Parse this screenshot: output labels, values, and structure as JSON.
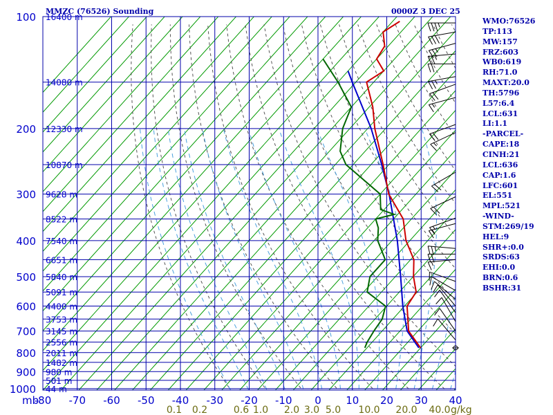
{
  "title_left": "MMZC (76526) Sounding",
  "title_right": "0000Z  3 DEC 25",
  "chart_data": {
    "type": "skew-t",
    "pressure_levels": [
      100,
      200,
      300,
      400,
      500,
      600,
      700,
      800,
      900,
      1000
    ],
    "temperature_ticks": [
      -80,
      -70,
      -60,
      -50,
      -40,
      -30,
      -20,
      -10,
      0,
      10,
      20,
      30,
      40
    ],
    "temperature_tick_labels": [
      "-80",
      "-70",
      "-60",
      "-50",
      "-40",
      "-30",
      "-20",
      "-10",
      "0",
      "10",
      "20",
      "30",
      "40"
    ],
    "pressure_unit": "mb",
    "mixing_ratio_unit": "g/kg",
    "mixing_ratio_labels": [
      "0.1",
      "0.2",
      "0.6",
      "1.0",
      "2.0",
      "3.0",
      "5.0",
      "10.0",
      "20.0",
      "40.0"
    ],
    "height_labels": [
      {
        "p": 100,
        "label": "16400 m"
      },
      {
        "p": 150,
        "label": "14080 m"
      },
      {
        "p": 200,
        "label": "12330 m"
      },
      {
        "p": 250,
        "label": "10870 m"
      },
      {
        "p": 300,
        "label": "9628 m"
      },
      {
        "p": 350,
        "label": "8522 m"
      },
      {
        "p": 400,
        "label": "7540 m"
      },
      {
        "p": 450,
        "label": "6651 m"
      },
      {
        "p": 500,
        "label": "5840 m"
      },
      {
        "p": 550,
        "label": "5091 m"
      },
      {
        "p": 600,
        "label": "4400 m"
      },
      {
        "p": 650,
        "label": "3753 m"
      },
      {
        "p": 700,
        "label": "3145 m"
      },
      {
        "p": 750,
        "label": "2556 m"
      },
      {
        "p": 800,
        "label": "2011 m"
      },
      {
        "p": 850,
        "label": "1482 m"
      },
      {
        "p": 900,
        "label": "980 m"
      },
      {
        "p": 950,
        "label": "501 m"
      },
      {
        "p": 1000,
        "label": "44 m"
      }
    ],
    "temperature_profile": [
      {
        "p": 777,
        "t": 20.0
      },
      {
        "p": 700,
        "t": 12.4
      },
      {
        "p": 600,
        "t": 5.7
      },
      {
        "p": 550,
        "t": 4.7
      },
      {
        "p": 500,
        "t": 0.1
      },
      {
        "p": 450,
        "t": -4.1
      },
      {
        "p": 400,
        "t": -11.1
      },
      {
        "p": 350,
        "t": -17.3
      },
      {
        "p": 300,
        "t": -27.6
      },
      {
        "p": 250,
        "t": -36.6
      },
      {
        "p": 200,
        "t": -48.0
      },
      {
        "p": 175,
        "t": -54.0
      },
      {
        "p": 150,
        "t": -62.0
      },
      {
        "p": 140,
        "t": -60.0
      },
      {
        "p": 130,
        "t": -65.0
      },
      {
        "p": 120,
        "t": -66.0
      },
      {
        "p": 110,
        "t": -70.0
      },
      {
        "p": 103,
        "t": -68.0
      }
    ],
    "dewpoint_profile": [
      {
        "p": 777,
        "t": 4.4
      },
      {
        "p": 750,
        "t": 3.6
      },
      {
        "p": 700,
        "t": 2.7
      },
      {
        "p": 650,
        "t": 2.0
      },
      {
        "p": 600,
        "t": -0.3
      },
      {
        "p": 550,
        "t": -9.0
      },
      {
        "p": 500,
        "t": -12.1
      },
      {
        "p": 450,
        "t": -12.1
      },
      {
        "p": 400,
        "t": -19.0
      },
      {
        "p": 370,
        "t": -22.0
      },
      {
        "p": 350,
        "t": -25.0
      },
      {
        "p": 340,
        "t": -21.0
      },
      {
        "p": 330,
        "t": -26.0
      },
      {
        "p": 300,
        "t": -30.0
      },
      {
        "p": 250,
        "t": -47.0
      },
      {
        "p": 230,
        "t": -52.0
      },
      {
        "p": 200,
        "t": -57.0
      },
      {
        "p": 175,
        "t": -60.0
      },
      {
        "p": 150,
        "t": -70.0
      },
      {
        "p": 130,
        "t": -80.0
      }
    ],
    "parcel_profile": [
      {
        "p": 777,
        "t": 19.5
      },
      {
        "p": 700,
        "t": 12.0
      },
      {
        "p": 600,
        "t": 4.5
      },
      {
        "p": 500,
        "t": -3.5
      },
      {
        "p": 400,
        "t": -13.5
      },
      {
        "p": 300,
        "t": -27.5
      },
      {
        "p": 250,
        "t": -37.0
      },
      {
        "p": 200,
        "t": -49.0
      },
      {
        "p": 150,
        "t": -66.0
      },
      {
        "p": 140,
        "t": -70.0
      }
    ],
    "wind_barbs": [
      {
        "p": 104,
        "dir": 270,
        "spd": 35
      },
      {
        "p": 110,
        "dir": 260,
        "spd": 30
      },
      {
        "p": 118,
        "dir": 255,
        "spd": 25
      },
      {
        "p": 126,
        "dir": 265,
        "spd": 25
      },
      {
        "p": 134,
        "dir": 270,
        "spd": 20
      },
      {
        "p": 145,
        "dir": 260,
        "spd": 25
      },
      {
        "p": 152,
        "dir": 250,
        "spd": 20
      },
      {
        "p": 165,
        "dir": 255,
        "spd": 15
      },
      {
        "p": 195,
        "dir": 250,
        "spd": 20
      },
      {
        "p": 205,
        "dir": 245,
        "spd": 15
      },
      {
        "p": 262,
        "dir": 240,
        "spd": 20
      },
      {
        "p": 305,
        "dir": 245,
        "spd": 20
      },
      {
        "p": 348,
        "dir": 250,
        "spd": 15
      },
      {
        "p": 360,
        "dir": 255,
        "spd": 15
      },
      {
        "p": 420,
        "dir": 275,
        "spd": 25
      },
      {
        "p": 435,
        "dir": 270,
        "spd": 20
      },
      {
        "p": 450,
        "dir": 265,
        "spd": 15
      },
      {
        "p": 515,
        "dir": 290,
        "spd": 10
      },
      {
        "p": 545,
        "dir": 300,
        "spd": 10
      },
      {
        "p": 575,
        "dir": 310,
        "spd": 10
      },
      {
        "p": 600,
        "dir": 320,
        "spd": 10
      },
      {
        "p": 625,
        "dir": 325,
        "spd": 10
      },
      {
        "p": 660,
        "dir": 330,
        "spd": 10
      },
      {
        "p": 700,
        "dir": 325,
        "spd": 10
      },
      {
        "p": 740,
        "dir": 320,
        "spd": 10
      }
    ],
    "surface_marker_p": 777
  },
  "indices": [
    "WMO:76526",
    "TP:113",
    "MW:157",
    "FRZ:603",
    "WB0:619",
    "RH:71.0",
    "MAXT:20.0",
    "TH:5796",
    "L57:6.4",
    "LCL:631",
    "LI:1.1",
    "-PARCEL-",
    "CAPE:18",
    "CINH:21",
    "LCL:636",
    "CAP:1.6",
    "LFC:601",
    "EL:551",
    "MPL:521",
    "-WIND-",
    "STM:269/19",
    "HEL:9",
    "SHR+:0.0",
    "SRDS:63",
    "EHI:0.0",
    "BRN:0.6",
    "BSHR:31"
  ],
  "colors": {
    "grid": "#0000aa",
    "isotherm": "#009900",
    "temperature": "#cc0000",
    "dewpoint": "#006600",
    "parcel": "#0000cc",
    "dry_adiabat": "#555555",
    "moist_adiabat": "#4aa0dd",
    "mixing_ratio": "#6b6b10"
  }
}
